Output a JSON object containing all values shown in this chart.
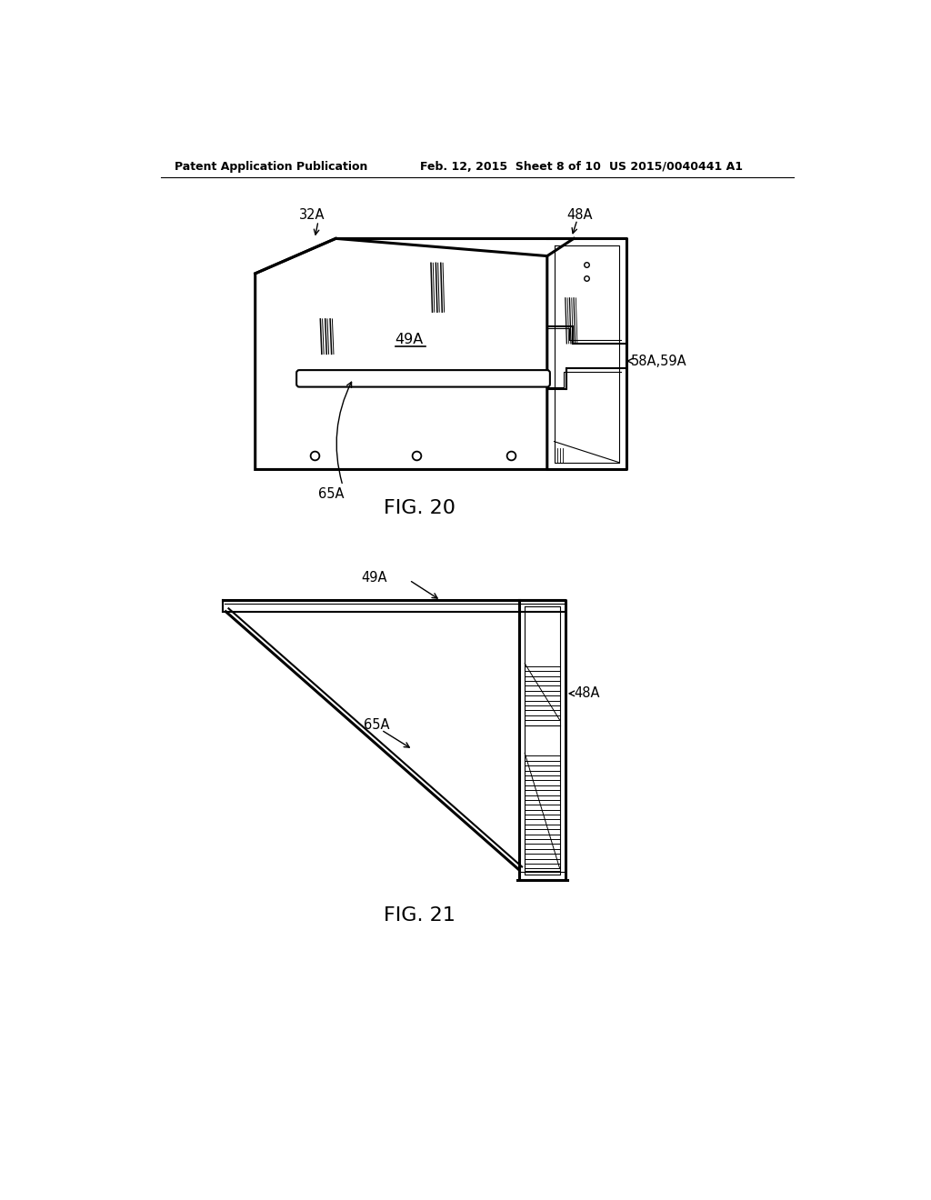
{
  "title_left": "Patent Application Publication",
  "title_center": "Feb. 12, 2015  Sheet 8 of 10",
  "title_right": "US 2015/0040441 A1",
  "fig20_label": "FIG. 20",
  "fig21_label": "FIG. 21",
  "bg_color": "#ffffff",
  "line_color": "#000000",
  "label_fontsize": 10.5,
  "fig_label_fontsize": 16
}
